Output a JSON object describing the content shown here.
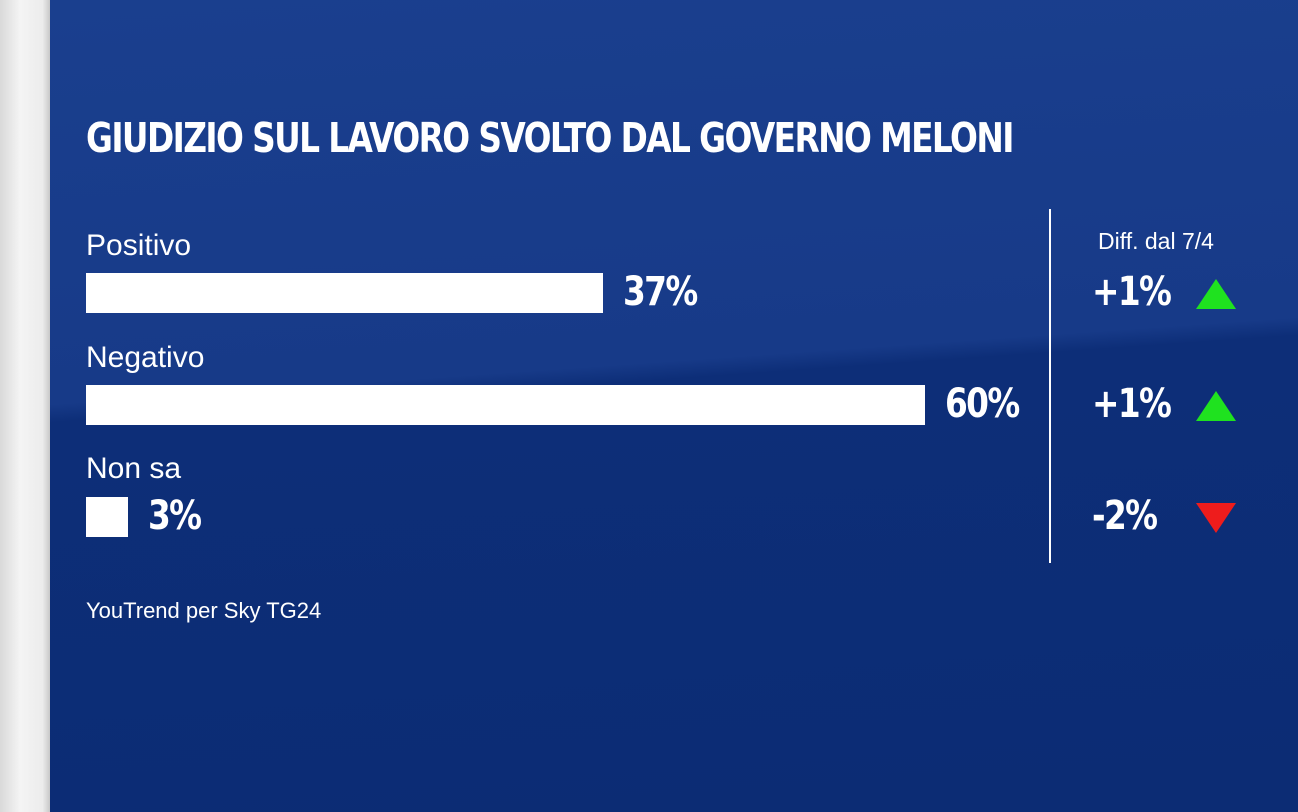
{
  "title": "GIUDIZIO SUL LAVORO SVOLTO DAL GOVERNO MELONI",
  "source": "YouTrend per Sky TG24",
  "diff_header": "Diff. dal 7/4",
  "colors": {
    "background": "#0d2f78",
    "bar": "#ffffff",
    "up": "#1fe21f",
    "down": "#ee1c1c"
  },
  "chart_data": {
    "type": "bar",
    "orientation": "horizontal",
    "title": "GIUDIZIO SUL LAVORO SVOLTO DAL GOVERNO MELONI",
    "categories": [
      "Positivo",
      "Negativo",
      "Non sa"
    ],
    "values": [
      37,
      60,
      3
    ],
    "value_labels": [
      "37%",
      "60%",
      "3%"
    ],
    "diff_header": "Diff. dal 7/4",
    "diffs": [
      1,
      1,
      -2
    ],
    "diff_labels": [
      "+1%",
      "+1%",
      "-2%"
    ],
    "diff_icons": [
      "triangle-up-green",
      "triangle-up-green",
      "triangle-down-red"
    ],
    "xlim": [
      0,
      60
    ],
    "source": "YouTrend per Sky TG24"
  }
}
